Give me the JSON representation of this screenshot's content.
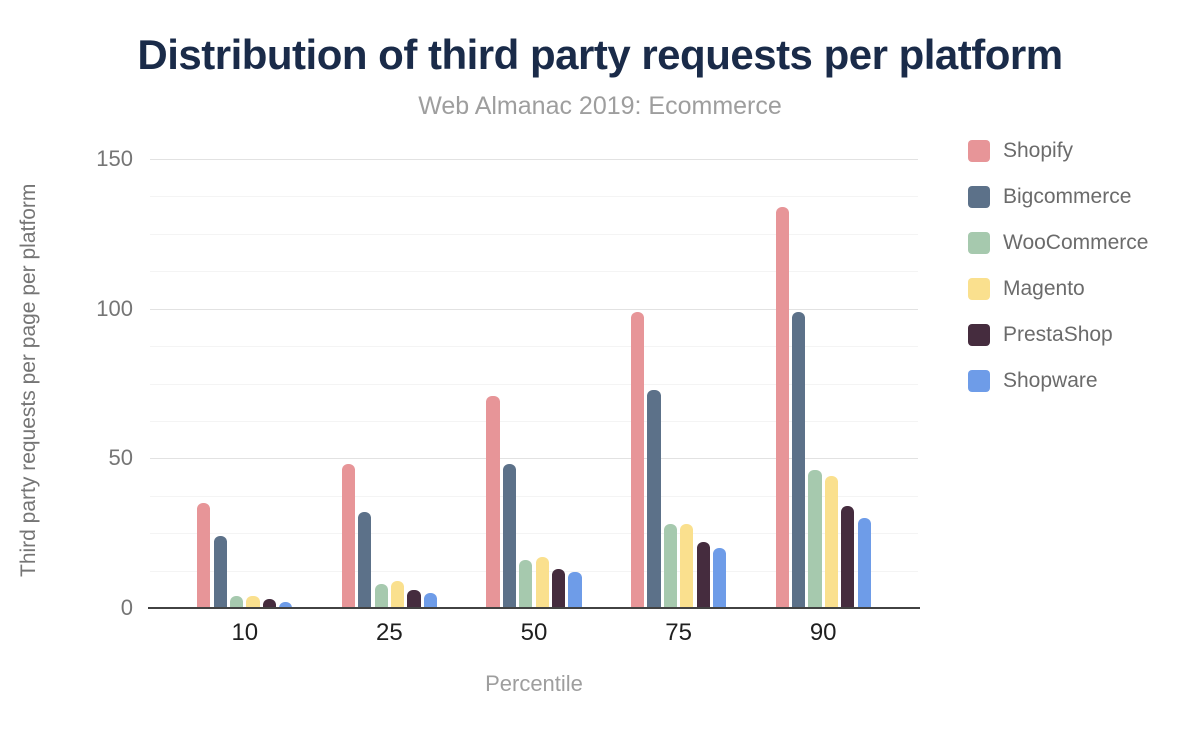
{
  "chart_data": {
    "type": "bar",
    "title": "Distribution of third party requests per platform",
    "subtitle": "Web Almanac 2019: Ecommerce",
    "xlabel": "Percentile",
    "ylabel": "Third party requests per page per platform",
    "categories": [
      "10",
      "25",
      "50",
      "75",
      "90"
    ],
    "series": [
      {
        "name": "Shopify",
        "color": "#e79598",
        "values": [
          35,
          48,
          71,
          99,
          134
        ]
      },
      {
        "name": "Bigcommerce",
        "color": "#5c7189",
        "values": [
          24,
          32,
          48,
          73,
          99
        ]
      },
      {
        "name": "WooCommerce",
        "color": "#a6c9ae",
        "values": [
          4,
          8,
          16,
          28,
          46
        ]
      },
      {
        "name": "Magento",
        "color": "#fae08e",
        "values": [
          4,
          9,
          17,
          28,
          44
        ]
      },
      {
        "name": "PrestaShop",
        "color": "#452c3e",
        "values": [
          3,
          6,
          13,
          22,
          34
        ]
      },
      {
        "name": "Shopware",
        "color": "#6e9ce8",
        "values": [
          2,
          5,
          12,
          20,
          30
        ]
      }
    ],
    "ylim": [
      0,
      150
    ],
    "yticks": [
      0,
      50,
      100,
      150
    ],
    "gridlines": {
      "major_step": 50,
      "minor_step": 12.5
    },
    "grid": true,
    "legend_position": "right"
  },
  "colors": {
    "title": "#1a2b49",
    "subtitle": "#9e9e9e",
    "axis_title_text": "#757575",
    "ytick_text": "#757575",
    "xtick_text": "#1f1f1f",
    "legend_text": "#6b6b6b",
    "grid_major": "#e2e2e2",
    "grid_minor": "#f4f4f4",
    "axis_line": "#424242",
    "background": "#ffffff"
  }
}
